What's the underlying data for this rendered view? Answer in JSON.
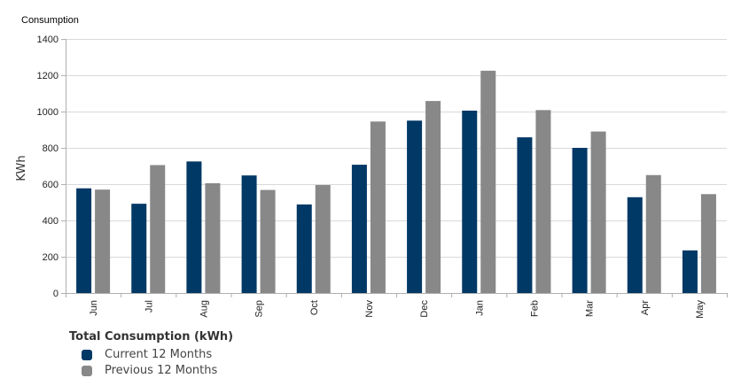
{
  "chart_data": {
    "type": "bar",
    "title": "Consumption",
    "ylabel": "KWh",
    "xlabel": "",
    "ylim": [
      0,
      1400
    ],
    "yticks": [
      0,
      200,
      400,
      600,
      800,
      1000,
      1200,
      1400
    ],
    "grid": true,
    "categories": [
      "Jun",
      "Jul",
      "Aug",
      "Sep",
      "Oct",
      "Nov",
      "Dec",
      "Jan",
      "Feb",
      "Mar",
      "Apr",
      "May"
    ],
    "series": [
      {
        "name": "Previous 12 Months",
        "color": "#888888",
        "values": [
          570,
          705,
          605,
          568,
          595,
          945,
          1058,
          1225,
          1008,
          890,
          650,
          545
        ]
      },
      {
        "name": "Current 12 Months",
        "color": "#003866",
        "values": [
          577,
          492,
          725,
          648,
          488,
          707,
          950,
          1005,
          858,
          800,
          528,
          235
        ]
      }
    ],
    "legend_position": "bottom-left"
  },
  "legend": {
    "title": "Total Consumption (kWh)",
    "items": [
      {
        "label": "Current 12 Months",
        "color": "#003866"
      },
      {
        "label": "Previous 12 Months",
        "color": "#888888"
      }
    ]
  }
}
